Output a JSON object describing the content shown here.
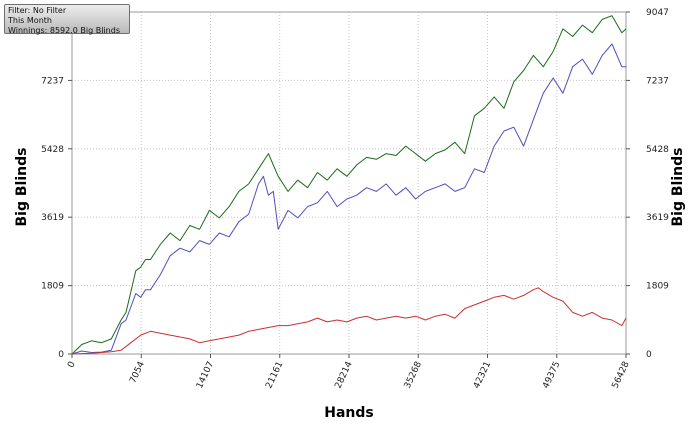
{
  "info": {
    "filter": "Filter: No Filter",
    "period": "This Month",
    "winnings": "Winnings: 8592.0 Big Blinds"
  },
  "chart_data": {
    "type": "line",
    "xlabel": "Hands",
    "ylabel": "Big Blinds",
    "xlim": [
      0,
      56428
    ],
    "ylim": [
      0,
      9047
    ],
    "x_ticks": [
      0,
      7054,
      14107,
      21161,
      28214,
      35268,
      42321,
      49375,
      56428
    ],
    "x_tick_labels": [
      "0",
      "7054",
      "14107",
      "21161",
      "28214",
      "35268",
      "42321",
      "49375",
      "56428"
    ],
    "y_ticks": [
      0,
      1809,
      3619,
      5428,
      7237,
      9047
    ],
    "y_tick_labels": [
      "0",
      "1809",
      "3619",
      "5428",
      "7237",
      "9047"
    ],
    "y_tick_labels_right": [
      "0",
      "1809",
      "3619",
      "5428",
      "7237",
      "9047"
    ],
    "grid": true,
    "series": [
      {
        "color": "#1a6b1a",
        "x": [
          0,
          1000,
          2000,
          3000,
          4000,
          5000,
          5500,
          6500,
          7000,
          7500,
          8000,
          9000,
          10000,
          11000,
          12000,
          13000,
          14000,
          15000,
          16000,
          17000,
          18000,
          19000,
          20000,
          20500,
          21000,
          22000,
          23000,
          24000,
          25000,
          26000,
          27000,
          28000,
          29000,
          30000,
          31000,
          32000,
          33000,
          34000,
          35000,
          36000,
          37000,
          38000,
          39000,
          40000,
          41000,
          42000,
          43000,
          44000,
          45000,
          46000,
          47000,
          48000,
          49000,
          50000,
          51000,
          52000,
          53000,
          54000,
          55000,
          56000,
          56428
        ],
        "y": [
          0,
          250,
          350,
          300,
          400,
          900,
          1100,
          2200,
          2300,
          2500,
          2500,
          2900,
          3200,
          3000,
          3400,
          3300,
          3800,
          3600,
          3900,
          4300,
          4500,
          4900,
          5300,
          5000,
          4700,
          4300,
          4600,
          4400,
          4800,
          4600,
          4900,
          4700,
          5000,
          5200,
          5150,
          5300,
          5250,
          5500,
          5300,
          5100,
          5300,
          5400,
          5600,
          5300,
          6300,
          6500,
          6800,
          6500,
          7200,
          7500,
          7900,
          7600,
          8000,
          8600,
          8400,
          8700,
          8500,
          8850,
          8950,
          8500,
          8600
        ]
      },
      {
        "color": "#4f4fbf",
        "x": [
          0,
          1000,
          2000,
          3000,
          4000,
          5000,
          5500,
          6500,
          7000,
          7500,
          8000,
          9000,
          10000,
          11000,
          12000,
          13000,
          14000,
          15000,
          16000,
          17000,
          18000,
          19000,
          19500,
          20000,
          20500,
          21000,
          22000,
          23000,
          24000,
          25000,
          26000,
          27000,
          28000,
          29000,
          30000,
          31000,
          32000,
          33000,
          34000,
          35000,
          36000,
          37000,
          38000,
          39000,
          40000,
          41000,
          42000,
          43000,
          44000,
          45000,
          46000,
          47000,
          48000,
          49000,
          50000,
          51000,
          52000,
          53000,
          54000,
          55000,
          56000,
          56428
        ],
        "y": [
          0,
          80,
          40,
          50,
          100,
          800,
          900,
          1600,
          1500,
          1700,
          1700,
          2100,
          2600,
          2800,
          2700,
          3000,
          2900,
          3200,
          3100,
          3500,
          3700,
          4500,
          4700,
          4200,
          4300,
          3300,
          3800,
          3600,
          3900,
          4000,
          4300,
          3900,
          4100,
          4200,
          4400,
          4300,
          4500,
          4200,
          4400,
          4100,
          4300,
          4400,
          4500,
          4300,
          4400,
          4900,
          4800,
          5500,
          5900,
          6000,
          5500,
          6200,
          6900,
          7300,
          6900,
          7600,
          7800,
          7400,
          7900,
          8200,
          7600,
          7600
        ]
      },
      {
        "color": "#c83232",
        "x": [
          0,
          2000,
          4000,
          5000,
          6000,
          7000,
          8000,
          9000,
          10000,
          11000,
          12000,
          13000,
          14000,
          15000,
          16000,
          17000,
          18000,
          19000,
          20000,
          21000,
          22000,
          23000,
          24000,
          25000,
          26000,
          27000,
          28000,
          29000,
          30000,
          31000,
          32000,
          33000,
          34000,
          35000,
          36000,
          37000,
          38000,
          39000,
          40000,
          41000,
          42000,
          43000,
          44000,
          45000,
          46000,
          47000,
          47500,
          48000,
          49000,
          50000,
          51000,
          52000,
          53000,
          54000,
          55000,
          56000,
          56428
        ],
        "y": [
          0,
          20,
          60,
          100,
          300,
          500,
          600,
          550,
          500,
          450,
          400,
          300,
          350,
          400,
          450,
          500,
          600,
          650,
          700,
          750,
          750,
          800,
          850,
          950,
          850,
          900,
          850,
          950,
          1000,
          900,
          950,
          1000,
          950,
          1000,
          900,
          1000,
          1050,
          950,
          1200,
          1300,
          1400,
          1500,
          1550,
          1450,
          1550,
          1700,
          1750,
          1650,
          1500,
          1400,
          1100,
          1000,
          1100,
          950,
          900,
          750,
          950
        ]
      }
    ]
  }
}
